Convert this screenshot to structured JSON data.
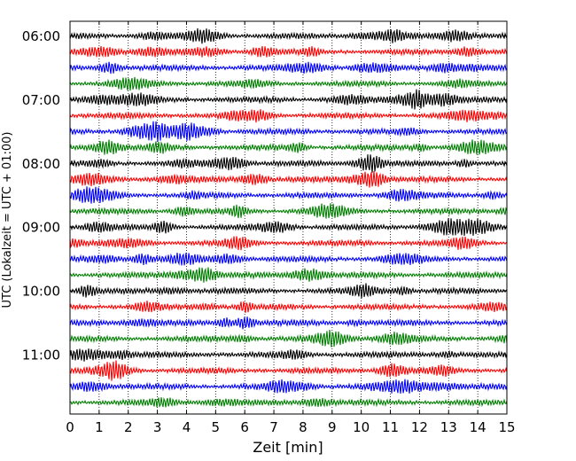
{
  "chart_data": {
    "type": "line",
    "subtype": "helicorder",
    "xlabel": "Zeit  [min]",
    "ylabel": "UTC (Lokalzeit = UTC + 01:00)",
    "xlim": [
      0,
      15
    ],
    "x_ticks": [
      "0",
      "1",
      "2",
      "3",
      "4",
      "5",
      "6",
      "7",
      "8",
      "9",
      "10",
      "11",
      "12",
      "13",
      "14",
      "15"
    ],
    "y_ticks": [
      "06:00",
      "07:00",
      "08:00",
      "09:00",
      "10:00",
      "11:00"
    ],
    "minutes_per_line": 15,
    "trace_count": 24,
    "trace_colors": [
      "#000000",
      "#ff0000",
      "#0000ff",
      "#008000"
    ],
    "vertical_grid": "dotted"
  }
}
